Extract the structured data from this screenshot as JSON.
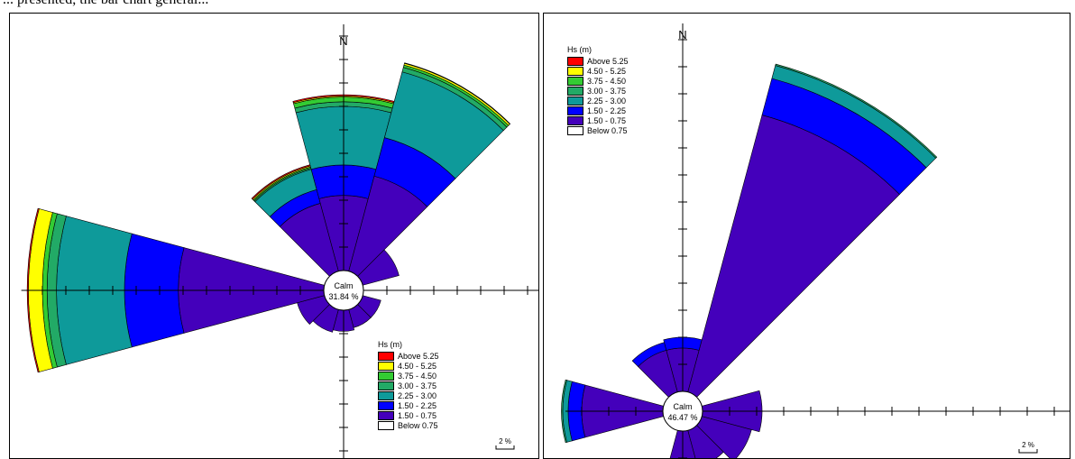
{
  "caption": "... presented, the bar chart general...",
  "legend": {
    "title": "Hs (m)",
    "items": [
      {
        "label": "Above 5.25",
        "color": "#ff0000"
      },
      {
        "label": "4.50 - 5.25",
        "color": "#ffff00"
      },
      {
        "label": "3.75 - 4.50",
        "color": "#33cc33"
      },
      {
        "label": "3.00 - 3.75",
        "color": "#22aa66"
      },
      {
        "label": "2.25 - 3.00",
        "color": "#0e9a9a"
      },
      {
        "label": "1.50 - 2.25",
        "color": "#0000ff"
      },
      {
        "label": "1.50 - 0.75",
        "color": "#4400bb"
      },
      {
        "label": "Below 0.75",
        "color": "#ffffff"
      }
    ]
  },
  "chart_data": [
    {
      "type": "windrose",
      "north_label": "N",
      "calm_label": "Calm",
      "calm_value": "31.84 %",
      "scale_label": "2 %",
      "bands": [
        "Below 0.75",
        "1.50 - 0.75",
        "1.50 - 2.25",
        "2.25 - 3.00",
        "3.00 - 3.75",
        "3.75 - 4.50",
        "4.50 - 5.25",
        "Above 5.25"
      ],
      "sectors": [
        {
          "direction_deg": 0,
          "cumulative_pct": [
            0,
            3.2,
            4.5,
            7.0,
            7.2,
            7.4,
            7.45,
            7.5
          ]
        },
        {
          "direction_deg": 30,
          "cumulative_pct": [
            0,
            4.2,
            5.9,
            8.8,
            9.0,
            9.1,
            9.18,
            9.2
          ]
        },
        {
          "direction_deg": 60,
          "cumulative_pct": [
            0,
            1.6,
            1.6,
            1.6,
            1.6,
            1.6,
            1.6,
            1.6
          ]
        },
        {
          "direction_deg": 120,
          "cumulative_pct": [
            0,
            0.8,
            0.8,
            0.8,
            0.8,
            0.8,
            0.8,
            0.8
          ]
        },
        {
          "direction_deg": 150,
          "cumulative_pct": [
            0,
            0.8,
            0.8,
            0.8,
            0.8,
            0.8,
            0.8,
            0.8
          ]
        },
        {
          "direction_deg": 180,
          "cumulative_pct": [
            0,
            0.9,
            0.9,
            0.9,
            0.9,
            0.9,
            0.9,
            0.9
          ]
        },
        {
          "direction_deg": 210,
          "cumulative_pct": [
            0,
            1.0,
            1.0,
            1.0,
            1.0,
            1.0,
            1.0,
            1.0
          ]
        },
        {
          "direction_deg": 240,
          "cumulative_pct": [
            0,
            1.2,
            1.2,
            1.2,
            1.2,
            1.2,
            1.2,
            1.2
          ]
        },
        {
          "direction_deg": 270,
          "cumulative_pct": [
            0,
            6.2,
            8.5,
            11.4,
            11.8,
            12.0,
            12.6,
            12.65
          ]
        },
        {
          "direction_deg": 330,
          "cumulative_pct": [
            0,
            3.0,
            3.6,
            4.5,
            4.55,
            4.6,
            4.65,
            4.7
          ]
        }
      ],
      "tick_spacing_pct": 1,
      "axis_extent_pct": 13
    },
    {
      "type": "windrose",
      "north_label": "N",
      "calm_label": "Calm",
      "calm_value": "46.47 %",
      "scale_label": "2 %",
      "bands": [
        "Below 0.75",
        "1.50 - 0.75",
        "1.50 - 2.25",
        "2.25 - 3.00",
        "3.00 - 3.75",
        "3.75 - 4.50",
        "4.50 - 5.25",
        "Above 5.25"
      ],
      "sectors": [
        {
          "direction_deg": 30,
          "cumulative_pct": [
            0,
            10.6,
            12.0,
            12.5,
            12.55,
            12.55,
            12.55,
            12.55
          ]
        },
        {
          "direction_deg": 90,
          "cumulative_pct": [
            0,
            2.2,
            2.2,
            2.2,
            2.2,
            2.2,
            2.2,
            2.2
          ]
        },
        {
          "direction_deg": 120,
          "cumulative_pct": [
            0,
            1.9,
            1.9,
            1.9,
            1.9,
            1.9,
            1.9,
            1.9
          ]
        },
        {
          "direction_deg": 150,
          "cumulative_pct": [
            0,
            1.4,
            1.4,
            1.4,
            1.4,
            1.4,
            1.4,
            1.4
          ]
        },
        {
          "direction_deg": 180,
          "cumulative_pct": [
            0,
            1.2,
            1.2,
            1.2,
            1.2,
            1.2,
            1.2,
            1.2
          ]
        },
        {
          "direction_deg": 270,
          "cumulative_pct": [
            0,
            3.0,
            3.5,
            3.7,
            3.75,
            3.75,
            3.75,
            3.75
          ]
        },
        {
          "direction_deg": 330,
          "cumulative_pct": [
            0,
            1.6,
            1.9,
            1.9,
            1.9,
            1.9,
            1.9,
            1.9
          ]
        },
        {
          "direction_deg": 0,
          "cumulative_pct": [
            0,
            1.6,
            2.0,
            2.0,
            2.0,
            2.0,
            2.0,
            2.0
          ]
        }
      ],
      "tick_spacing_pct": 1,
      "axis_extent_pct": 15
    }
  ]
}
